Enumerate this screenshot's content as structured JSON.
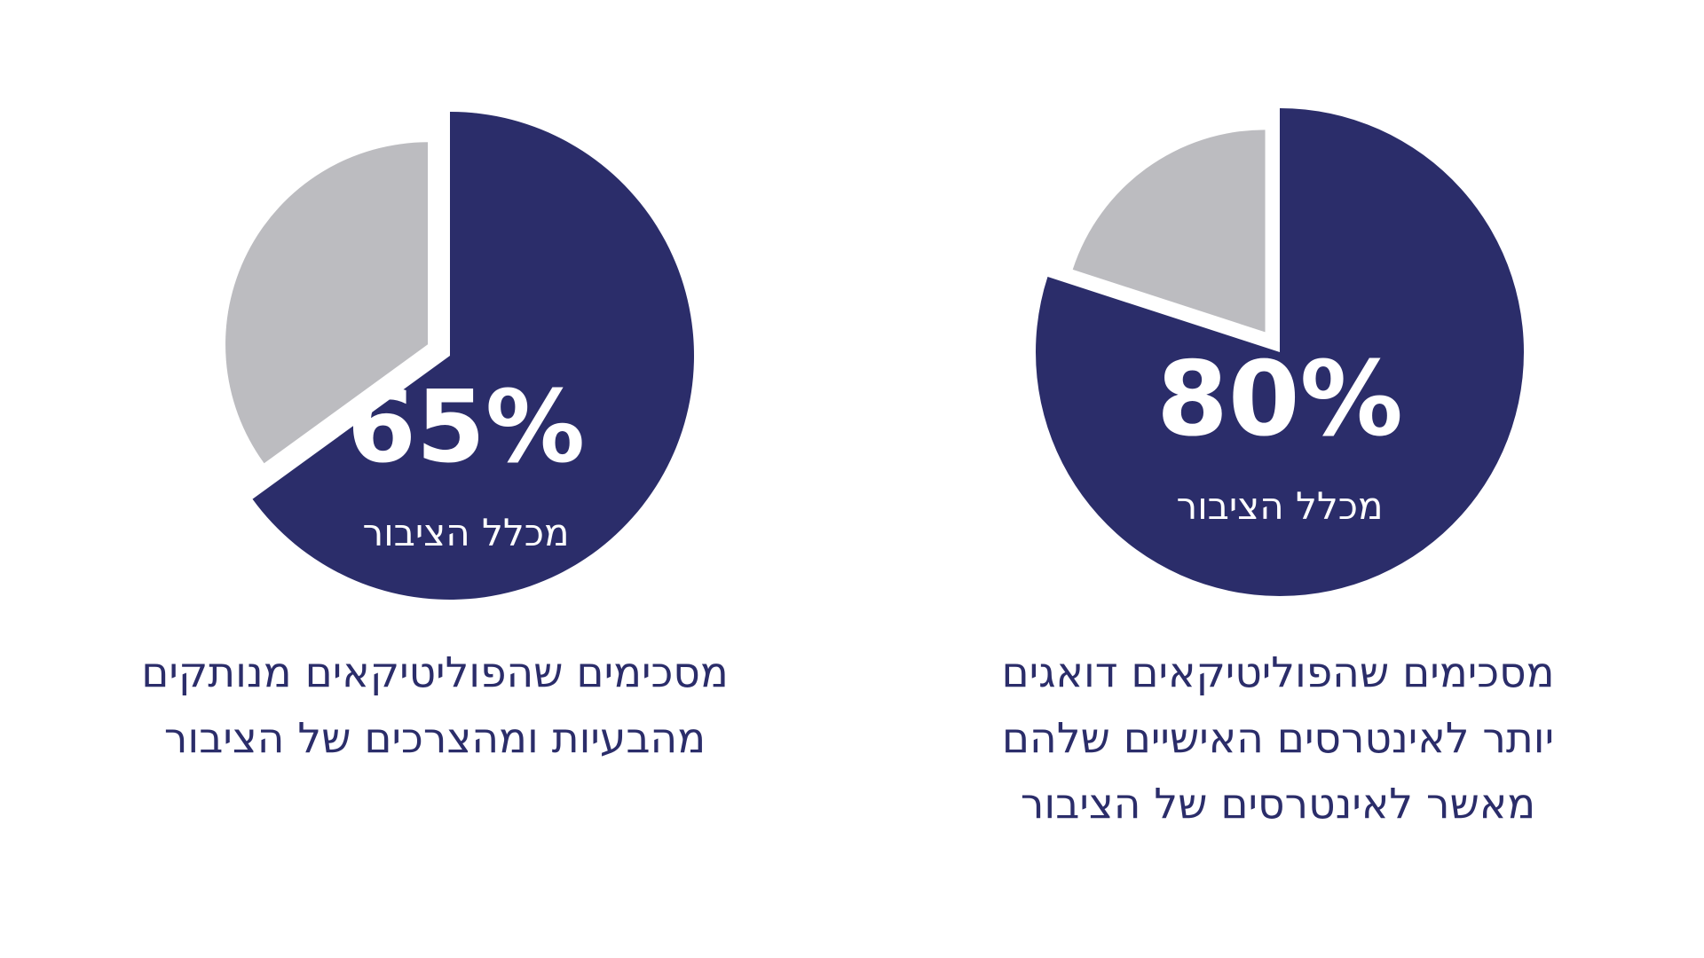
{
  "colors": {
    "primary": "#2b2d6a",
    "secondary": "#bcbcc0",
    "background": "#ffffff",
    "label": "#ffffff"
  },
  "chart_data": [
    {
      "type": "pie",
      "values": [
        80,
        20
      ],
      "colors": [
        "#2b2d6a",
        "#bcbcc0"
      ],
      "highlight": "80%",
      "highlight_sublabel": "מכלל הציבור",
      "caption": [
        "מסכימים שהפוליטיקאים דואגים",
        "יותר לאינטרסים האישיים שלהם",
        "מאשר לאינטרסים של הציבור"
      ]
    },
    {
      "type": "pie",
      "values": [
        65,
        35
      ],
      "colors": [
        "#2b2d6a",
        "#bcbcc0"
      ],
      "highlight": "65%",
      "highlight_sublabel": "מכלל הציבור",
      "caption": [
        "מסכימים שהפוליטיקאים מנותקים",
        "מהבעיות ומהצרכים של הציבור"
      ]
    }
  ]
}
